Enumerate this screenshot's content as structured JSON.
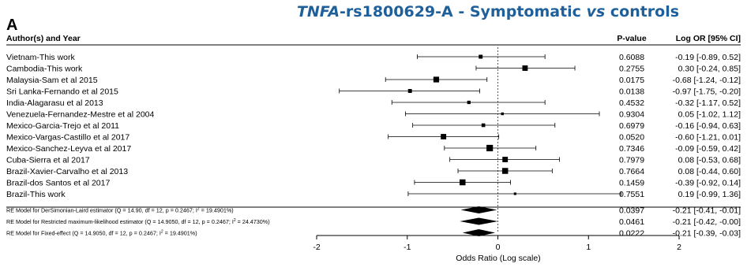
{
  "panel_label": "A",
  "title": {
    "gene": "TNFA",
    "rest": "-rs1800629-A - Symptomatic ",
    "vs": "vs",
    "tail": " controls"
  },
  "headers": {
    "study": "Author(s) and Year",
    "pvalue": "P-value",
    "logor": "Log OR [95% CI]"
  },
  "chart_data": {
    "type": "forest",
    "xlabel": "Odds Ratio (Log scale)",
    "xlim": [
      -2,
      2
    ],
    "xticks": [
      -2,
      -1,
      0,
      1,
      2
    ],
    "xtick_labels": [
      "-2",
      "-1",
      "0",
      "1",
      "2"
    ],
    "reference_line": 0,
    "studies": [
      {
        "name": "Vietnam-This work",
        "est": -0.19,
        "lo": -0.89,
        "hi": 0.52,
        "weight": 0.45,
        "p": "0.6088",
        "ci_text": "-0.19 [-0.89,  0.52]"
      },
      {
        "name": "Cambodia-This work",
        "est": 0.3,
        "lo": -0.24,
        "hi": 0.85,
        "weight": 0.75,
        "p": "0.2755",
        "ci_text": "0.30 [-0.24,  0.85]"
      },
      {
        "name": "Malaysia-Sam et al 2015",
        "est": -0.68,
        "lo": -1.24,
        "hi": -0.12,
        "weight": 0.8,
        "p": "0.0175",
        "ci_text": "-0.68 [-1.24, -0.12]"
      },
      {
        "name": "Sri Lanka-Fernando et al 2015",
        "est": -0.97,
        "lo": -1.75,
        "hi": -0.2,
        "weight": 0.45,
        "p": "0.0138",
        "ci_text": "-0.97 [-1.75, -0.20]"
      },
      {
        "name": "India-Alagarasu et al 2013",
        "est": -0.32,
        "lo": -1.17,
        "hi": 0.52,
        "weight": 0.35,
        "p": "0.4532",
        "ci_text": "-0.32 [-1.17,  0.52]"
      },
      {
        "name": "Venezuela-Fernandez-Mestre et al 2004",
        "est": 0.05,
        "lo": -1.02,
        "hi": 1.12,
        "weight": 0.22,
        "p": "0.9304",
        "ci_text": "0.05 [-1.02,  1.12]"
      },
      {
        "name": "Mexico-Garcia-Trejo et al 2011",
        "est": -0.16,
        "lo": -0.94,
        "hi": 0.63,
        "weight": 0.4,
        "p": "0.6979",
        "ci_text": "-0.16 [-0.94,  0.63]"
      },
      {
        "name": "Mexico-Vargas-Castillo et al 2017",
        "est": -0.6,
        "lo": -1.21,
        "hi": 0.01,
        "weight": 0.75,
        "p": "0.0520",
        "ci_text": "-0.60 [-1.21,  0.01]"
      },
      {
        "name": "Mexico-Sanchez-Leyva et al 2017",
        "est": -0.09,
        "lo": -0.59,
        "hi": 0.42,
        "weight": 0.95,
        "p": "0.7346",
        "ci_text": "-0.09 [-0.59,  0.42]"
      },
      {
        "name": "Cuba-Sierra et al 2017",
        "est": 0.08,
        "lo": -0.53,
        "hi": 0.68,
        "weight": 0.75,
        "p": "0.7979",
        "ci_text": "0.08 [-0.53,  0.68]"
      },
      {
        "name": "Brazil-Xavier-Carvalho et al 2013",
        "est": 0.08,
        "lo": -0.44,
        "hi": 0.6,
        "weight": 0.85,
        "p": "0.7664",
        "ci_text": "0.08 [-0.44,  0.60]"
      },
      {
        "name": "Brazil-dos Santos et al 2017",
        "est": -0.39,
        "lo": -0.92,
        "hi": 0.14,
        "weight": 0.85,
        "p": "0.1459",
        "ci_text": "-0.39 [-0.92,  0.14]"
      },
      {
        "name": "Brazil-This work",
        "est": 0.19,
        "lo": -0.99,
        "hi": 1.36,
        "weight": 0.18,
        "p": "0.7551",
        "ci_text": "0.19 [-0.99,  1.36]"
      }
    ],
    "models": [
      {
        "label": "RE Model for DerSimonian-Laird estimator (Q = 14.90, df = 12, p = 0.2467; I",
        "sup": "2",
        "label_end": " = 19.4901%)",
        "est": -0.21,
        "lo": -0.41,
        "hi": -0.01,
        "p": "0.0397",
        "ci_text": "-0.21 [-0.41, -0.01]"
      },
      {
        "label": "RE Model for Restricted maximum-likelihood estimator (Q = 14.9050, df = 12, p = 0.2467; I",
        "sup": "2",
        "label_end": " = 24.4730%)",
        "est": -0.21,
        "lo": -0.42,
        "hi": -0.0,
        "p": "0.0461",
        "ci_text": "-0.21 [-0.42, -0.00]"
      },
      {
        "label": "RE Model for Fixed-effect (Q = 14.9050, df = 12, p = 0.2467; I",
        "sup": "2",
        "label_end": " = 19.4901%)",
        "est": -0.21,
        "lo": -0.39,
        "hi": -0.03,
        "p": "0.0222",
        "ci_text": "-0.21 [-0.39, -0.03]"
      }
    ]
  }
}
